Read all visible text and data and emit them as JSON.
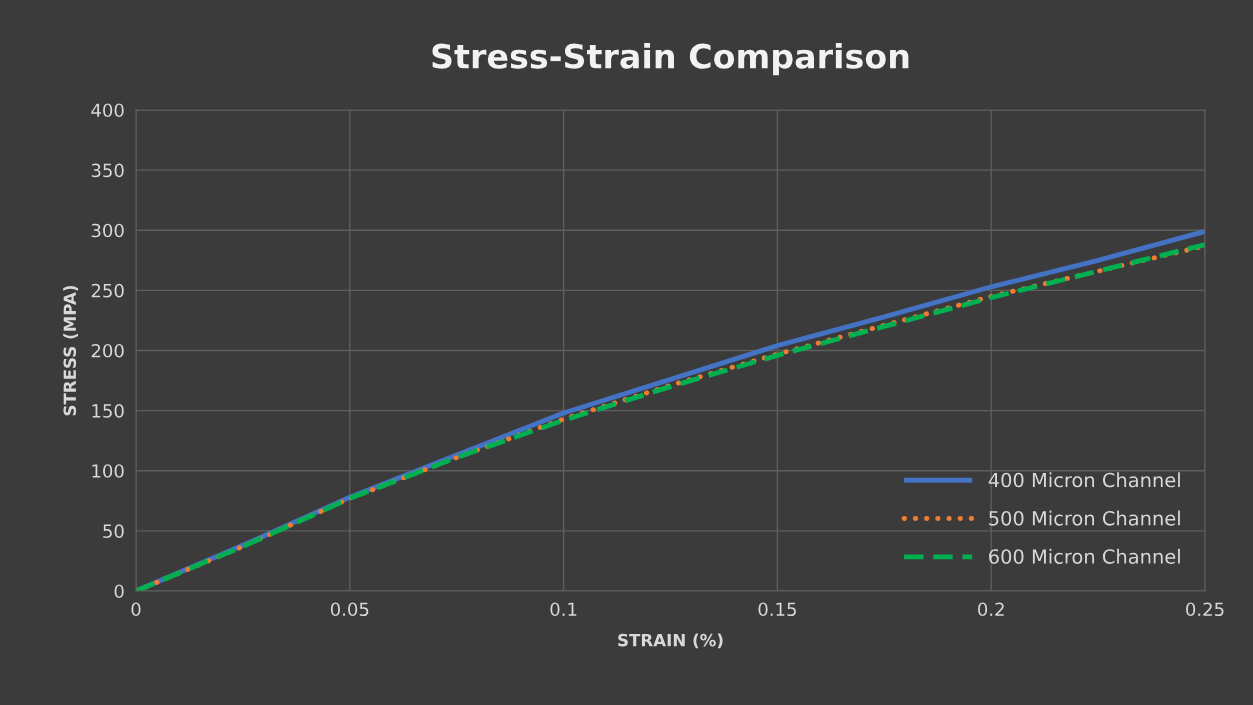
{
  "chart_data": {
    "type": "line",
    "title": "Stress-Strain Comparison",
    "xlabel": "STRAIN (%)",
    "ylabel": "STRESS (MPA)",
    "xlim": [
      0,
      0.25
    ],
    "xticks": [
      0,
      0.05,
      0.1,
      0.15,
      0.2,
      0.25
    ],
    "ylim": [
      0,
      400
    ],
    "yticks": [
      0,
      50,
      100,
      150,
      200,
      250,
      300,
      350,
      400
    ],
    "grid": true,
    "legend": "bottom right",
    "x": [
      0,
      0.025,
      0.05,
      0.075,
      0.1,
      0.125,
      0.15,
      0.175,
      0.2,
      0.225,
      0.25
    ],
    "series": [
      {
        "name": "400 Micron Channel",
        "color": "#4472c4",
        "line_style": "solid",
        "values": [
          0,
          38,
          78,
          113,
          148,
          176,
          204,
          228,
          253,
          275,
          299
        ]
      },
      {
        "name": "500 Micron Channel",
        "color": "#ed7d31",
        "line_style": "dotted",
        "values": [
          0,
          37,
          77,
          111,
          143,
          171,
          197,
          221,
          245,
          266,
          287
        ]
      },
      {
        "name": "600 Micron Channel",
        "color": "#00b050",
        "line_style": "dashed",
        "values": [
          0,
          37,
          77,
          111,
          142,
          170,
          196,
          220,
          244,
          266,
          288
        ]
      }
    ]
  }
}
